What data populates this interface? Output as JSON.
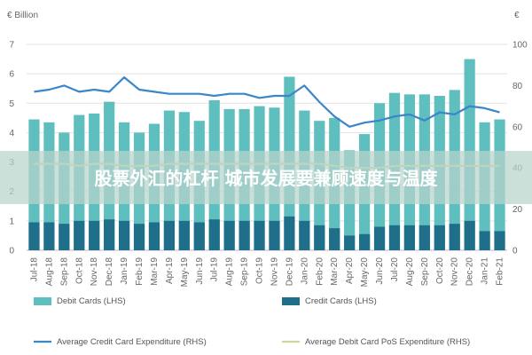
{
  "chart_data": {
    "type": "bar",
    "left_axis_label": "€ Billion",
    "right_axis_label": "€",
    "left_ylim": [
      0,
      7
    ],
    "right_ylim": [
      0,
      100
    ],
    "left_ticks": [
      "0",
      "1",
      "2",
      "3",
      "4",
      "5",
      "6",
      "7"
    ],
    "right_ticks": [
      "0",
      "20",
      "40",
      "60",
      "80",
      "100"
    ],
    "categories": [
      "Jul-18",
      "Aug-18",
      "Sep-18",
      "Oct-18",
      "Nov-18",
      "Dec-18",
      "Jan-19",
      "Feb-19",
      "Mar-19",
      "Apr-19",
      "May-19",
      "Jun-19",
      "Jul-19",
      "Aug-19",
      "Sep-19",
      "Oct-19",
      "Nov-19",
      "Dec-19",
      "Jan-20",
      "Feb-20",
      "Mar-20",
      "Apr-20",
      "May-20",
      "Jun-20",
      "Jul-20",
      "Aug-20",
      "Sep-20",
      "Oct-20",
      "Nov-20",
      "Dec-20",
      "Jan-21",
      "Feb-21"
    ],
    "visible_tick_labels": [
      "Jul-18",
      "Aug-18",
      "Sep-18",
      "Oct-18",
      "Nov-18",
      "Dec-18",
      "Jan-19",
      "Feb-19",
      "Mar-19",
      "Apr-19",
      "May-19",
      "Jun-19",
      "Jul-19",
      "Aug-19",
      "Sep-19",
      "Oct-19",
      "Nov-19",
      "Dec-19",
      "Jan-20",
      "Feb-20",
      "Mar-20",
      "Apr-20",
      "May-20",
      "Jun-20",
      "Jul-20",
      "Aug-20",
      "Sep-20",
      "Oct-20",
      "Nov-20",
      "Dec-20",
      "Jan-21",
      "Feb-21"
    ],
    "series": [
      {
        "name": "Debit Cards (LHS)",
        "kind": "bar",
        "axis": "left",
        "color": "#5fbfbf",
        "values": [
          4.45,
          4.35,
          4.0,
          4.6,
          4.65,
          5.05,
          4.35,
          4.0,
          4.3,
          4.75,
          4.7,
          4.4,
          5.1,
          4.8,
          4.8,
          4.9,
          4.85,
          5.9,
          4.75,
          4.4,
          4.5,
          3.4,
          3.95,
          5.0,
          5.35,
          5.3,
          5.3,
          5.25,
          5.45,
          6.5,
          4.35,
          4.45
        ]
      },
      {
        "name": "Credit Cards (LHS)",
        "kind": "bar",
        "axis": "left",
        "color": "#1f6f8b",
        "values": [
          0.95,
          0.95,
          0.9,
          1.0,
          1.0,
          1.05,
          1.0,
          0.9,
          0.95,
          1.0,
          1.0,
          0.95,
          1.05,
          1.0,
          1.0,
          1.0,
          1.0,
          1.15,
          1.0,
          0.85,
          0.75,
          0.5,
          0.55,
          0.8,
          0.85,
          0.85,
          0.85,
          0.85,
          0.9,
          1.0,
          0.65,
          0.65
        ]
      },
      {
        "name": "Average Credit Card Expenditure (RHS)",
        "kind": "line",
        "axis": "right",
        "color": "#3a86c8",
        "values": [
          77,
          78,
          80,
          77,
          78,
          77,
          84,
          78,
          77,
          76,
          76,
          76,
          75,
          76,
          76,
          74,
          75,
          75,
          80,
          72,
          65,
          60,
          62,
          63,
          65,
          66,
          63,
          67,
          66,
          70,
          69,
          67
        ]
      },
      {
        "name": "Average Debit Card PoS Expenditure (RHS)",
        "kind": "line",
        "axis": "right",
        "color": "#c8d89a",
        "values": [
          42,
          42,
          42,
          41,
          42,
          42,
          41,
          41,
          41,
          42,
          42,
          42,
          42,
          42,
          42,
          42,
          42,
          42,
          42,
          42,
          41,
          40,
          40,
          40,
          41,
          41,
          41,
          41,
          41,
          41,
          41,
          41
        ]
      }
    ],
    "banner_text": "股票外汇的杠杆 城市发展要兼顾速度与温度"
  }
}
